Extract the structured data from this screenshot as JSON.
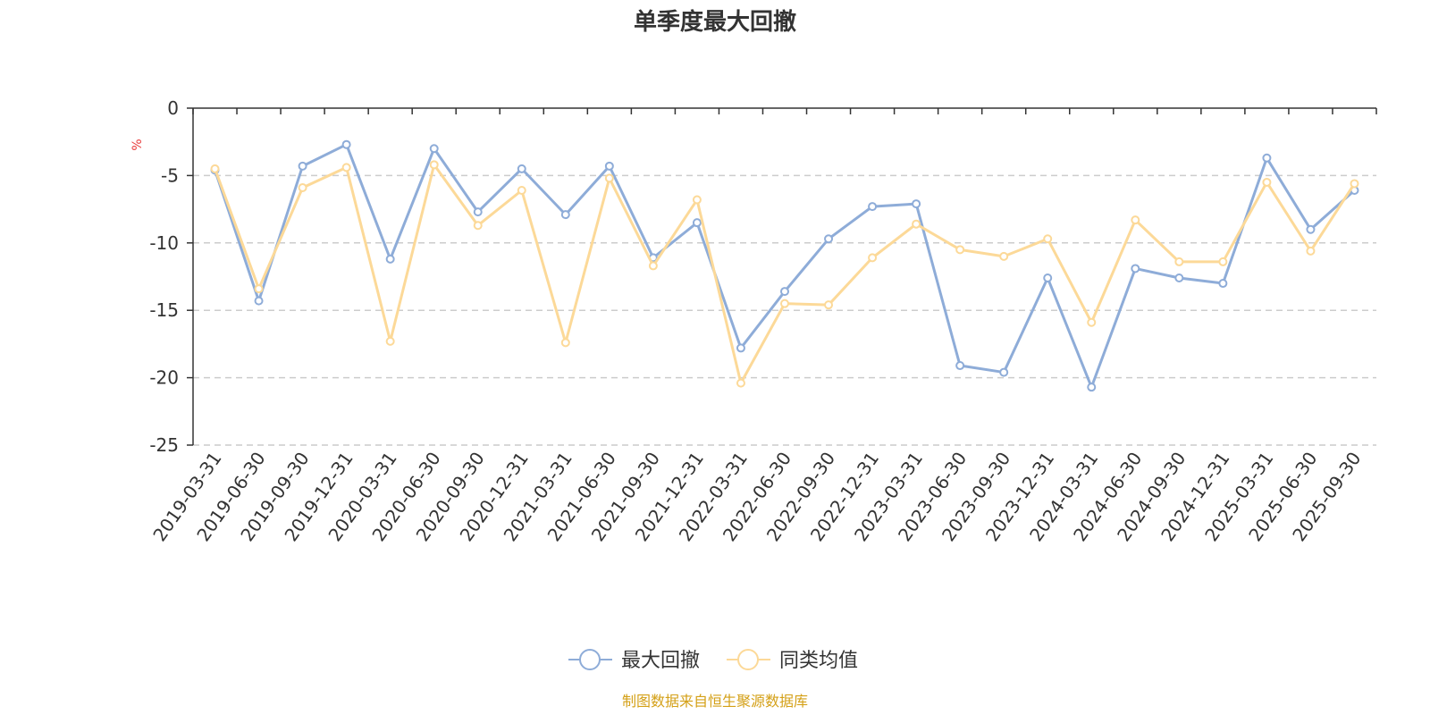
{
  "chart_data": {
    "type": "line",
    "title": "单季度最大回撤",
    "ylabel": "%",
    "ylim": [
      -25,
      0
    ],
    "yticks": [
      0,
      -5,
      -10,
      -15,
      -20,
      -25
    ],
    "grid": true,
    "legend_position": "bottom-center",
    "categories": [
      "2019-03-31",
      "2019-06-30",
      "2019-09-30",
      "2019-12-31",
      "2020-03-31",
      "2020-06-30",
      "2020-09-30",
      "2020-12-31",
      "2021-03-31",
      "2021-06-30",
      "2021-09-30",
      "2021-12-31",
      "2022-03-31",
      "2022-06-30",
      "2022-09-30",
      "2022-12-31",
      "2023-03-31",
      "2023-06-30",
      "2023-09-30",
      "2023-12-31",
      "2024-03-31",
      "2024-06-30",
      "2024-09-30",
      "2024-12-31",
      "2025-03-31",
      "2025-06-30",
      "2025-09-30"
    ],
    "series": [
      {
        "name": "最大回撤",
        "color": "#8eacd8",
        "values": [
          -4.6,
          -14.3,
          -4.3,
          -2.7,
          -11.2,
          -3.0,
          -7.7,
          -4.5,
          -7.9,
          -4.3,
          -11.1,
          -8.5,
          -17.8,
          -13.6,
          -9.7,
          -7.3,
          -7.1,
          -19.1,
          -19.6,
          -12.6,
          -20.7,
          -11.9,
          -12.6,
          -13.0,
          -3.7,
          -9.0,
          -6.1
        ]
      },
      {
        "name": "同类均值",
        "color": "#fcd998",
        "values": [
          -4.5,
          -13.4,
          -5.9,
          -4.4,
          -17.3,
          -4.2,
          -8.7,
          -6.1,
          -17.4,
          -5.2,
          -11.7,
          -6.8,
          -20.4,
          -14.5,
          -14.6,
          -11.1,
          -8.6,
          -10.5,
          -11.0,
          -9.7,
          -15.9,
          -8.3,
          -11.4,
          -11.4,
          -5.5,
          -10.6,
          -5.6
        ]
      }
    ]
  },
  "footer": {
    "source": "制图数据来自恒生聚源数据库"
  }
}
